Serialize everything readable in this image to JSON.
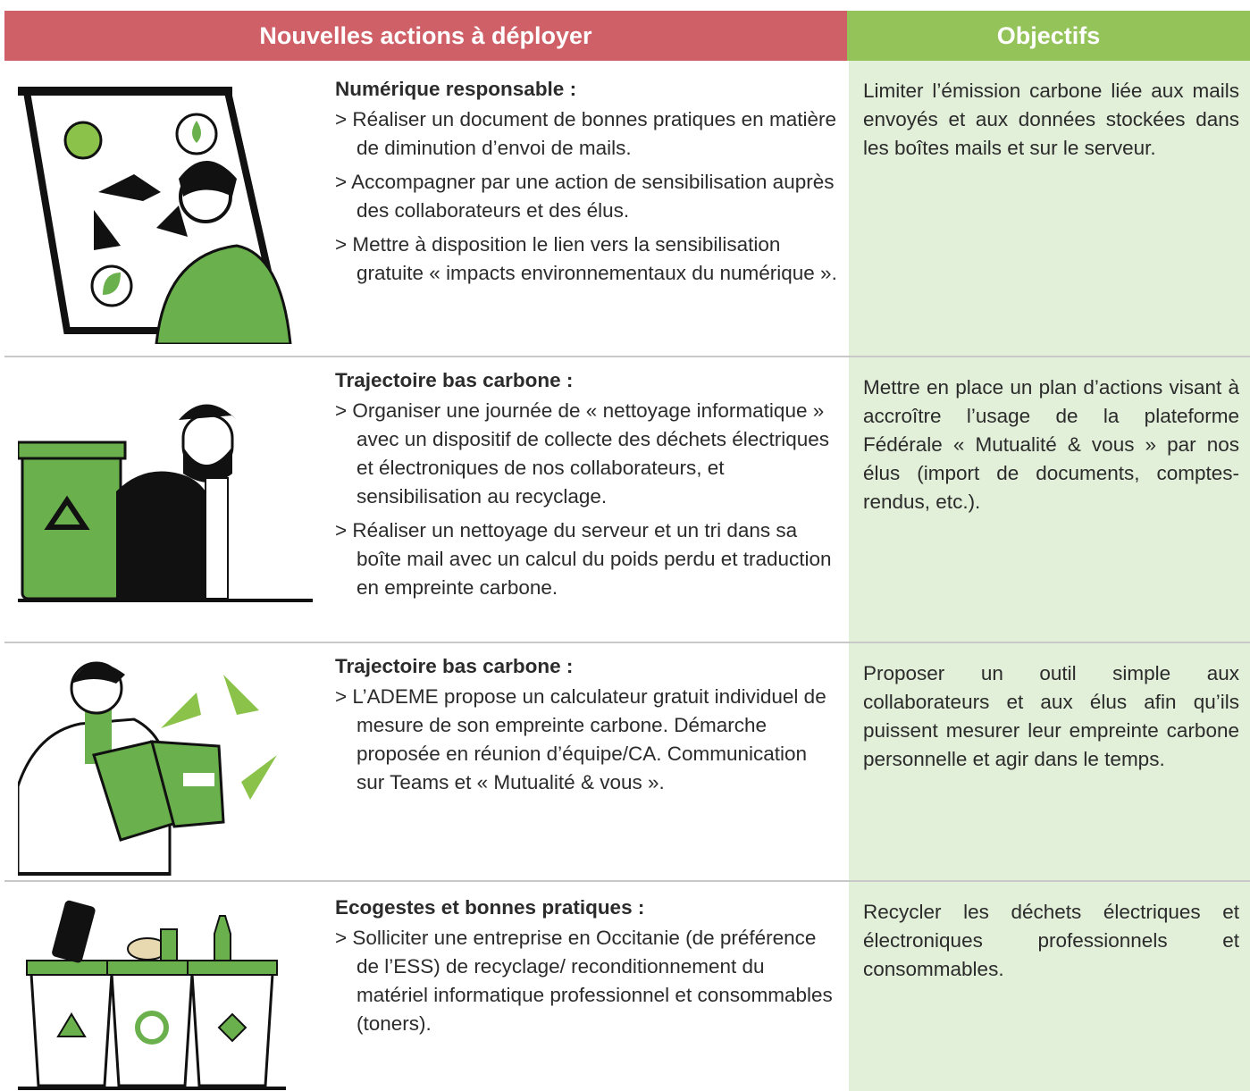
{
  "header": {
    "columns": [
      "Nouvelles actions à déployer",
      "Objectifs"
    ]
  },
  "rows": [
    {
      "title": "Numérique responsable :",
      "items": [
        "> Réaliser un document de bonnes pratiques en matière de diminution d’envoi de mails.",
        "> Accompagner par une action de sensibilisation auprès des collaborateurs et des élus.",
        "> Mettre à disposition le lien vers la sensibilisation gratuite « impacts environnementaux du numérique »."
      ],
      "objective": "Limiter l’émission carbone liée aux mails envoyés et aux données stockées dans les boîtes mails et sur le serveur."
    },
    {
      "title": "Trajectoire bas carbone :",
      "items": [
        "> Organiser une journée de « nettoyage informatique » avec un dispositif de collecte des déchets électriques et électroniques de nos collaborateurs, et sensibilisation au recyclage.",
        "> Réaliser un nettoyage du serveur et un tri dans sa boîte mail avec un calcul du poids perdu et traduction en empreinte carbone."
      ],
      "objective": "Mettre en place un plan d’actions visant à accroître l’usage de la plateforme Fédérale « Mutualité & vous » par nos élus (import de documents, comptes-rendus, etc.)."
    },
    {
      "title": "Trajectoire bas carbone :",
      "items": [
        "> L’ADEME propose un calculateur gratuit individuel de mesure de son empreinte carbone. Démarche proposée en réunion d’équipe/CA. Communication sur Teams et « Mutualité & vous »."
      ],
      "objective": "Proposer un outil simple aux collaborateurs et aux élus afin qu’ils puissent mesurer leur empreinte carbone personnelle et agir dans le temps."
    },
    {
      "title": "Ecogestes et bonnes pratiques :",
      "items": [
        "> Solliciter une entreprise en Occitanie (de préférence de l’ESS) de recyclage/ reconditionnement du matériel informatique professionnel et consommables (toners)."
      ],
      "objective": "Recycler les déchets électriques et électroniques professionnels et consommables."
    }
  ]
}
